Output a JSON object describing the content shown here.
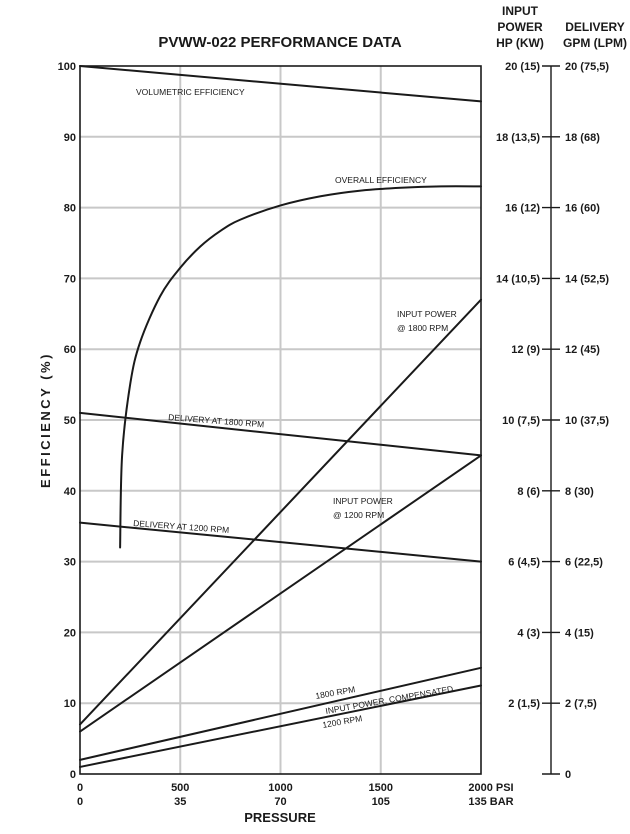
{
  "chart_data": {
    "type": "line",
    "title": "PVWW-022 PERFORMANCE DATA",
    "ylabel": "EFFICIENCY (%)",
    "xlabel": "PRESSURE",
    "xlim": [
      0,
      2000
    ],
    "ylim": [
      0,
      100
    ],
    "grid": true,
    "x_ticks_psi": [
      "0",
      "500",
      "1000",
      "1500",
      "2000 PSI"
    ],
    "x_ticks_bar": [
      "0",
      "35",
      "70",
      "105",
      "135  BAR"
    ],
    "y_ticks": [
      "0",
      "10",
      "20",
      "30",
      "40",
      "50",
      "60",
      "70",
      "80",
      "90",
      "100"
    ],
    "right_axes": {
      "power_header": [
        "INPUT",
        "POWER",
        "HP (KW)"
      ],
      "delivery_header": [
        "DELIVERY",
        "GPM (LPM)"
      ],
      "power_ticks": [
        "",
        "2 (1,5)",
        "4 (3)",
        "6 (4,5)",
        "8 (6)",
        "10 (7,5)",
        "12 (9)",
        "14 (10,5)",
        "16 (12)",
        "18 (13,5)",
        "20 (15)"
      ],
      "delivery_ticks": [
        "0",
        "2 (7,5)",
        "4 (15)",
        "6 (22,5)",
        "8 (30)",
        "10 (37,5)",
        "12 (45)",
        "14 (52,5)",
        "16 (60)",
        "18 (68)",
        "20 (75,5)"
      ]
    },
    "series": [
      {
        "name": "VOLUMETRIC EFFICIENCY",
        "x": [
          0,
          2000
        ],
        "y": [
          100,
          95
        ]
      },
      {
        "name": "OVERALL EFFICIENCY",
        "x": [
          200,
          210,
          250,
          300,
          400,
          500,
          600,
          700,
          800,
          1000,
          1200,
          1400,
          1600,
          1800,
          2000
        ],
        "y": [
          32,
          45,
          55,
          61,
          67.5,
          71.5,
          74.5,
          76.7,
          78.3,
          80.3,
          81.6,
          82.4,
          82.8,
          83,
          83
        ]
      },
      {
        "name": "INPUT POWER @ 1800 RPM",
        "x": [
          0,
          2000
        ],
        "y": [
          7,
          67
        ]
      },
      {
        "name": "DELIVERY AT 1800 RPM",
        "x": [
          0,
          2000
        ],
        "y": [
          51,
          45
        ]
      },
      {
        "name": "INPUT POWER @ 1200 RPM",
        "x": [
          0,
          2000
        ],
        "y": [
          6,
          45
        ]
      },
      {
        "name": "DELIVERY AT 1200 RPM",
        "x": [
          0,
          2000
        ],
        "y": [
          35.5,
          30
        ]
      },
      {
        "name": "1800 RPM INPUT POWER, COMPENSATED",
        "x": [
          0,
          2000
        ],
        "y": [
          2,
          15
        ]
      },
      {
        "name": "1200 RPM INPUT POWER, COMPENSATED",
        "x": [
          0,
          2000
        ],
        "y": [
          1,
          12.5
        ]
      }
    ],
    "annotations": {
      "volumetric": "VOLUMETRIC EFFICIENCY",
      "overall": "OVERALL EFFICIENCY",
      "power1800_a": "INPUT POWER",
      "power1800_b": "@ 1800 RPM",
      "delivery1800": "DELIVERY AT 1800 RPM",
      "power1200_a": "INPUT POWER",
      "power1200_b": "@ 1200 RPM",
      "delivery1200": "DELIVERY AT 1200 RPM",
      "comp_a": "1800 RPM",
      "comp_b": "INPUT POWER, COMPENSATED",
      "comp_c": "1200 RPM"
    }
  }
}
